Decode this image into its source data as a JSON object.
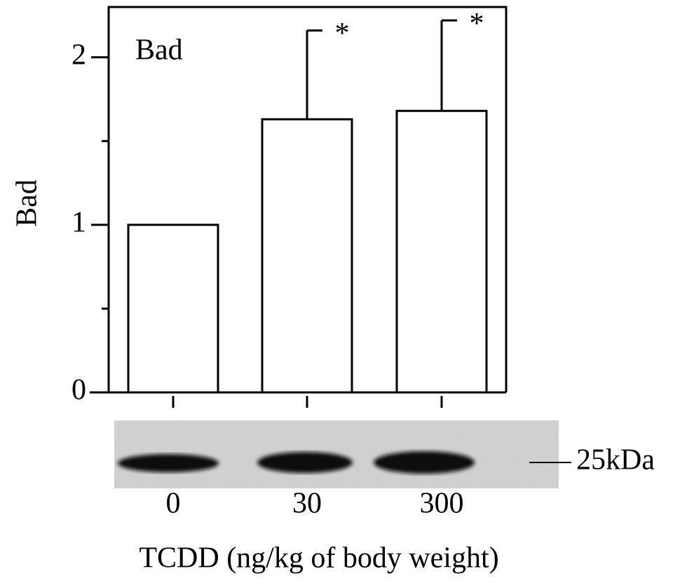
{
  "chart_data": {
    "type": "bar",
    "y_label": "Bad",
    "panel_label": "Bad",
    "x_label": "TCDD (ng/kg of body weight)",
    "categories": [
      "0",
      "30",
      "300"
    ],
    "values": [
      1.0,
      1.63,
      1.68
    ],
    "errors": [
      null,
      0.53,
      0.54
    ],
    "significance": [
      null,
      "*",
      "*"
    ],
    "color": "#ffffff",
    "edge_color": "#000000",
    "ylim": [
      0,
      2.3
    ],
    "yticks": [
      0,
      1,
      2
    ],
    "yminor_ticks": [
      0.5,
      1.5
    ],
    "blot_marker": "25kDa"
  }
}
